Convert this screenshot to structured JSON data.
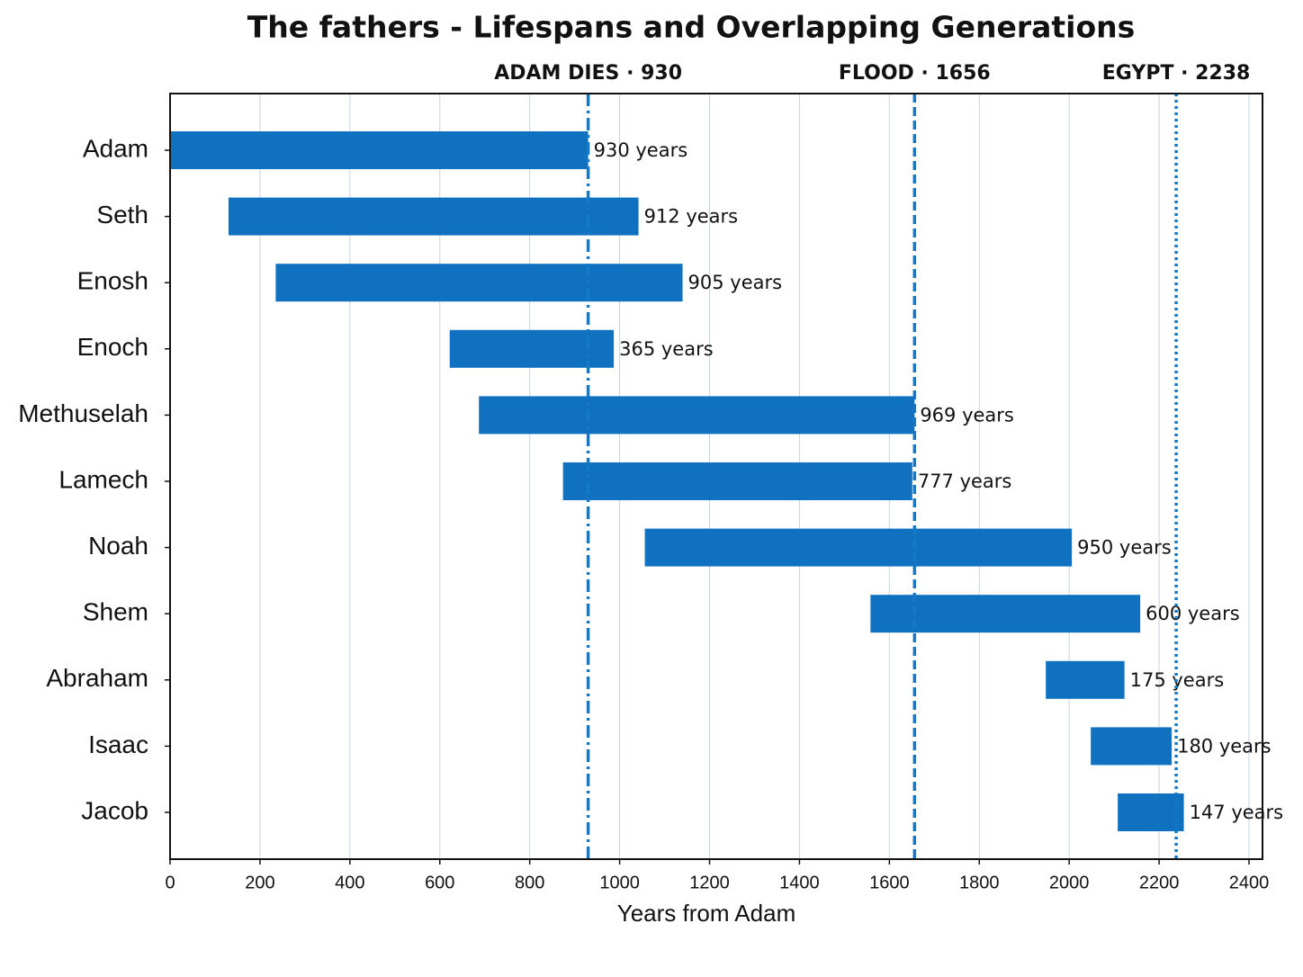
{
  "chart_data": {
    "type": "floating-bar",
    "title": "The fathers - Lifespans and Overlapping Generations",
    "x_label": "Years from Adam",
    "categories": [
      "Adam",
      "Seth",
      "Enosh",
      "Enoch",
      "Methuselah",
      "Lamech",
      "Noah",
      "Shem",
      "Abraham",
      "Isaac",
      "Jacob"
    ],
    "series": [
      {
        "color": "#0f71bf",
        "start": [
          0,
          130,
          235,
          622,
          687,
          874,
          1056,
          1558,
          1948,
          2048,
          2108
        ],
        "values": [
          930,
          912,
          905,
          365,
          969,
          777,
          950,
          600,
          175,
          180,
          147
        ],
        "value_labels": [
          "930 years",
          "912 years",
          "905 years",
          "365 years",
          "969 years",
          "777 years",
          "950 years",
          "600 years",
          "175 years",
          "180 years",
          "147 years"
        ]
      }
    ],
    "xlim": [
      0,
      2430
    ],
    "xticks": [
      0,
      200,
      400,
      600,
      800,
      1000,
      1200,
      1400,
      1600,
      1800,
      2000,
      2200,
      2400
    ],
    "grid": true,
    "annotations": [
      {
        "value": 930,
        "label": "ADAM DIES · 930",
        "style": "dashdot",
        "color": "#1479c6"
      },
      {
        "value": 1656,
        "label": "FLOOD · 1656",
        "style": "dashed",
        "color": "#1479c6"
      },
      {
        "value": 2238,
        "label": "EGYPT  · 2238",
        "style": "dotted",
        "color": "#1479c6"
      }
    ]
  }
}
